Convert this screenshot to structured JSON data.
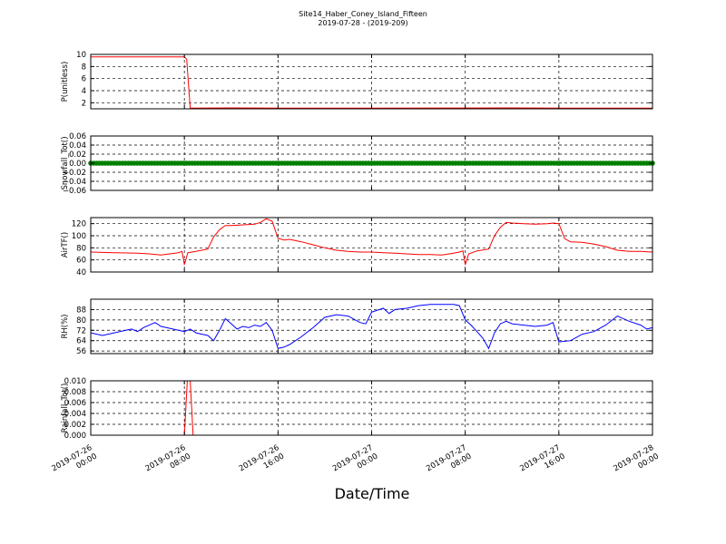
{
  "figure": {
    "title": "Site14_Haber_Coney_Island_Fifteen",
    "subtitle": "2019-07-28 - (2019-209)",
    "xlabel": "Date/Time"
  },
  "chart_data": [
    {
      "type": "line",
      "ylabel": "P(unitless)",
      "ylim": [
        1,
        10
      ],
      "yticks": [
        "2",
        "4",
        "6",
        "8",
        "10"
      ],
      "ytick_values": [
        2,
        4,
        6,
        8,
        10
      ],
      "color": "#ff0000",
      "x": [
        0,
        8,
        8.2,
        8.5,
        12,
        16,
        24,
        36,
        40,
        48
      ],
      "y": [
        9.6,
        9.6,
        9.2,
        1.1,
        1.15,
        1.12,
        1.1,
        1.15,
        1.1,
        1.1
      ],
      "grid": true
    },
    {
      "type": "line",
      "ylabel": "Snowfall_Tot()",
      "ylim": [
        -0.06,
        0.06
      ],
      "yticks": [
        "0.06",
        "0.04",
        "0.02",
        "0.00",
        "−0.02",
        "−0.04",
        "−0.06"
      ],
      "ytick_values": [
        0.06,
        0.04,
        0.02,
        0,
        -0.02,
        -0.04,
        -0.06
      ],
      "color": "#008000",
      "markers": true,
      "x": [
        0,
        48
      ],
      "y": [
        0,
        0
      ],
      "grid": true
    },
    {
      "type": "line",
      "ylabel": "AirTF()",
      "ylim": [
        40,
        130
      ],
      "yticks": [
        "40",
        "60",
        "80",
        "100",
        "120"
      ],
      "ytick_values": [
        40,
        60,
        80,
        100,
        120
      ],
      "color": "#ff0000",
      "x": [
        0,
        2,
        4,
        5,
        6,
        7.5,
        7.8,
        8,
        8.3,
        9,
        10,
        10.5,
        11,
        11.5,
        12,
        13,
        14,
        14.5,
        15,
        15.5,
        16,
        16.5,
        17,
        18,
        19,
        20,
        21,
        22,
        23,
        24,
        25,
        26,
        27,
        28,
        29,
        30,
        31,
        31.5,
        31.8,
        32,
        32.3,
        33,
        34,
        34.5,
        35,
        35.5,
        36,
        37,
        38,
        39,
        39.5,
        40,
        40.5,
        41,
        42,
        43,
        44,
        45,
        46,
        47,
        48
      ],
      "y": [
        73,
        72,
        71,
        70,
        68,
        72,
        74,
        52,
        72,
        74,
        78,
        98,
        110,
        117,
        117,
        118,
        119,
        122,
        128,
        124,
        96,
        93,
        94,
        90,
        85,
        80,
        76,
        74,
        73,
        73,
        72,
        71,
        70,
        69,
        69,
        68,
        71,
        73,
        75,
        52,
        70,
        75,
        78,
        100,
        114,
        122,
        121,
        120,
        119,
        120,
        121,
        120,
        95,
        90,
        89,
        86,
        82,
        76,
        74,
        74,
        73
      ],
      "grid": true
    },
    {
      "type": "line",
      "ylabel": "RH(%)",
      "ylim": [
        54,
        96
      ],
      "yticks": [
        "56",
        "64",
        "72",
        "80",
        "88"
      ],
      "ytick_values": [
        56,
        64,
        72,
        80,
        88
      ],
      "color": "#0000ff",
      "x": [
        0,
        1,
        2,
        3,
        3.5,
        4,
        4.5,
        5,
        5.5,
        6,
        6.5,
        7,
        7.5,
        8,
        8.5,
        9,
        9.5,
        10,
        10.5,
        11,
        11.5,
        12,
        12.5,
        13,
        13.5,
        14,
        14.5,
        15,
        15.5,
        16,
        16.5,
        17,
        18,
        19,
        20,
        21,
        22,
        23,
        23.5,
        24,
        25,
        25.5,
        26,
        27,
        28,
        29,
        30,
        31,
        31.5,
        32,
        32.5,
        33,
        33.5,
        34,
        34.5,
        35,
        35.5,
        36,
        37,
        38,
        39,
        39.5,
        40,
        41,
        42,
        43,
        44,
        45,
        46,
        47,
        47.5,
        48
      ],
      "y": [
        70,
        68,
        70,
        72,
        73,
        71,
        74,
        76,
        78,
        75,
        74,
        73,
        72,
        71,
        73,
        70,
        69,
        68,
        64,
        72,
        81,
        77,
        73,
        75,
        74,
        76,
        75,
        78,
        72,
        58,
        59,
        61,
        67,
        74,
        82,
        84,
        83,
        78,
        77,
        86,
        89,
        85,
        88,
        89,
        91,
        92,
        92,
        92,
        91,
        80,
        76,
        71,
        66,
        58,
        70,
        77,
        79,
        77,
        76,
        75,
        76,
        78,
        63,
        64,
        69,
        71,
        76,
        83,
        79,
        76,
        73,
        74
      ],
      "grid": true
    },
    {
      "type": "line",
      "ylabel": "Rainfall_Tot()",
      "ylim": [
        0,
        0.01
      ],
      "yticks": [
        "0.000",
        "0.002",
        "0.004",
        "0.006",
        "0.008",
        "0.010"
      ],
      "ytick_values": [
        0,
        0.002,
        0.004,
        0.006,
        0.008,
        0.01
      ],
      "color": "#ff0000",
      "x": [
        0,
        8.0,
        8.25,
        8.5,
        8.75,
        9.0,
        48
      ],
      "y": [
        0,
        0,
        0.01,
        0.01,
        0,
        0,
        0
      ],
      "grid": true
    }
  ],
  "xaxis": {
    "range": [
      0,
      48
    ],
    "ticks": [
      {
        "value": 0,
        "date": "2019-07-26",
        "time": "00:00"
      },
      {
        "value": 8,
        "date": "2019-07-26",
        "time": "08:00"
      },
      {
        "value": 16,
        "date": "2019-07-26",
        "time": "16:00"
      },
      {
        "value": 24,
        "date": "2019-07-27",
        "time": "00:00"
      },
      {
        "value": 32,
        "date": "2019-07-27",
        "time": "08:00"
      },
      {
        "value": 40,
        "date": "2019-07-27",
        "time": "16:00"
      },
      {
        "value": 48,
        "date": "2019-07-28",
        "time": "00:00"
      }
    ]
  }
}
